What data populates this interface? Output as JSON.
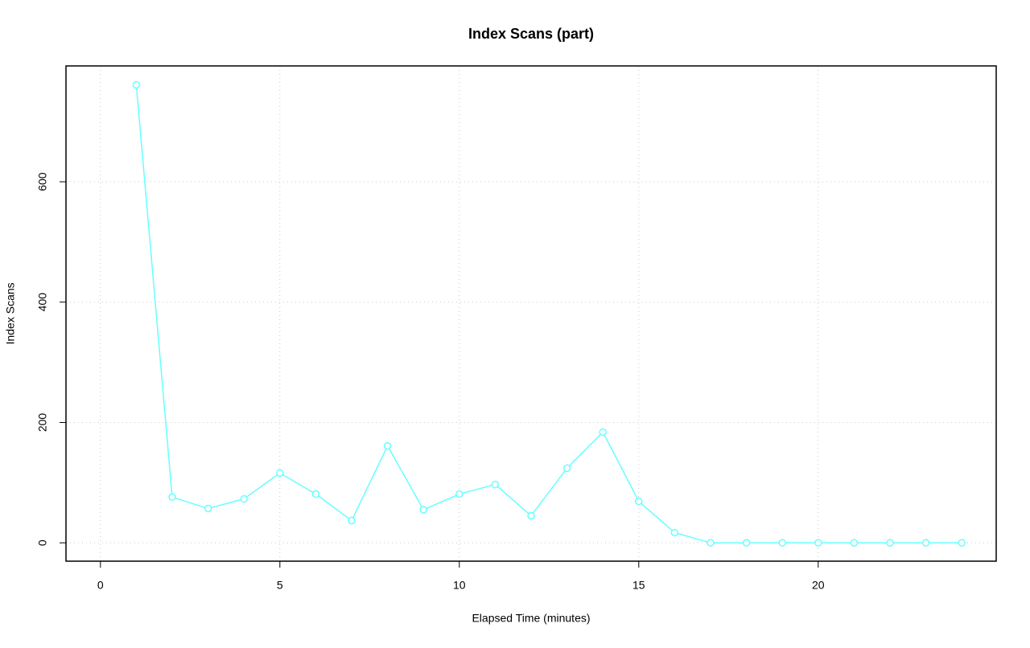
{
  "chart_data": {
    "type": "line",
    "title": "Index Scans (part)",
    "x_label": "Elapsed Time (minutes)",
    "y_label": "Index Scans",
    "x": [
      1,
      2,
      3,
      4,
      5,
      6,
      7,
      8,
      9,
      10,
      11,
      12,
      13,
      14,
      15,
      16,
      17,
      18,
      19,
      20,
      21,
      22,
      23,
      24
    ],
    "series": [
      {
        "name": "Index Scans",
        "color": "#66ffff",
        "values": [
          761,
          76,
          57,
          73,
          116,
          81,
          37,
          161,
          55,
          81,
          97,
          45,
          124,
          184,
          69,
          17,
          0,
          0,
          0,
          0,
          0,
          0,
          0,
          0
        ]
      }
    ],
    "xlim": [
      -0.96,
      24.96
    ],
    "xticks": [
      0,
      5,
      10,
      15,
      20
    ],
    "ylim": [
      -30.5,
      792.5
    ],
    "yticks": [
      0,
      200,
      400,
      600
    ],
    "grid": true
  }
}
